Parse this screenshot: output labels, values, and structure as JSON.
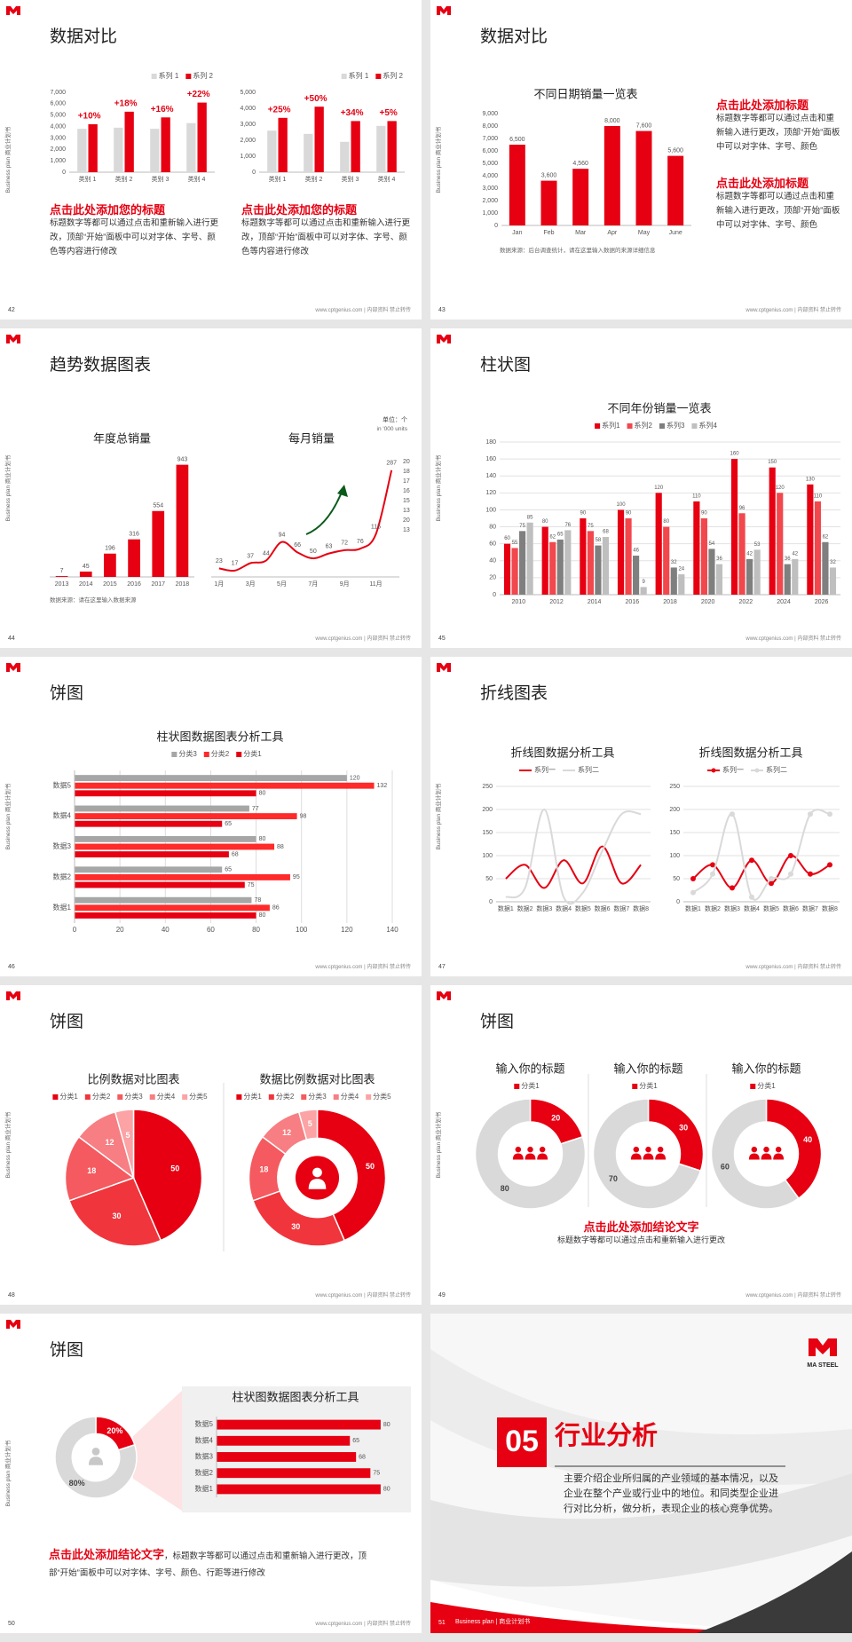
{
  "common": {
    "side_label": "Business plan 商业计划书",
    "footer": "www.cptgenius.com | 内部资料 禁止转传"
  },
  "slides": [
    {
      "number": 42,
      "title": "数据对比",
      "charts": [
        {
          "type": "bar",
          "legend": "top-right",
          "categories": [
            "类别 1",
            "类别 2",
            "类别 3",
            "类别 4"
          ],
          "series": [
            {
              "name": "系列 1",
              "color": "#d9d9d9",
              "values": [
                3800,
                3900,
                3800,
                4300
              ]
            },
            {
              "name": "系列 2",
              "color": "#e60012",
              "values": [
                4200,
                5300,
                4800,
                6100
              ]
            }
          ],
          "annotations": [
            "+10%",
            "+18%",
            "+16%",
            "+22%"
          ],
          "ylim": [
            0,
            7000
          ],
          "yticks": [
            0,
            {
              "value": 1000,
              "label": "1,000"
            },
            {
              "value": 2000,
              "label": "2,000"
            },
            {
              "value": 3000,
              "label": "3,000"
            },
            {
              "value": 4000,
              "label": "4,000"
            },
            {
              "value": 5000,
              "label": "5,000"
            },
            {
              "value": 6000,
              "label": "6,000"
            },
            {
              "value": 7000,
              "label": "7,000"
            }
          ]
        },
        {
          "type": "bar",
          "legend": "top-right",
          "categories": [
            "类别 1",
            "类别 2",
            "类别 3",
            "类别 4"
          ],
          "series": [
            {
              "name": "系列 1",
              "color": "#d9d9d9",
              "values": [
                2600,
                2400,
                1900,
                2900
              ]
            },
            {
              "name": "系列 2",
              "color": "#e60012",
              "values": [
                3400,
                4100,
                3200,
                3200
              ]
            }
          ],
          "annotations": [
            "+25%",
            "+50%",
            "+34%",
            "+5%"
          ],
          "ylim": [
            0,
            5000
          ],
          "yticks": [
            0,
            {
              "value": 1000,
              "label": "1,000"
            },
            {
              "value": 2000,
              "label": "2,000"
            },
            {
              "value": 3000,
              "label": "3,000"
            },
            {
              "value": 4000,
              "label": "4,000"
            },
            {
              "value": 5000,
              "label": "5,000"
            }
          ]
        }
      ],
      "blocks": [
        {
          "heading": "点击此处添加您的标题",
          "body": "标题数字等都可以通过点击和重新输入进行更改，顶部“开始”面板中可以对字体、字号、颜色等内容进行修改"
        },
        {
          "heading": "点击此处添加您的标题",
          "body": "标题数字等都可以通过点击和重新输入进行更改，顶部“开始”面板中可以对字体、字号、颜色等内容进行修改"
        }
      ]
    },
    {
      "number": 43,
      "title": "数据对比",
      "charts": [
        {
          "type": "bar",
          "title": "不同日期销量一览表",
          "categories": [
            "Jan",
            "Feb",
            "Mar",
            "Apr",
            "May",
            "June"
          ],
          "values": [
            6500,
            3600,
            4560,
            8000,
            7600,
            5600
          ],
          "value_labels": [
            "6,500",
            "3,600",
            "4,560",
            "8,000",
            "7,600",
            "5,600"
          ],
          "color": "#e60012",
          "ylim": [
            0,
            9000
          ],
          "yticks": [
            0,
            {
              "value": 1000,
              "label": "1,000"
            },
            {
              "value": 2000,
              "label": "2,000"
            },
            {
              "value": 3000,
              "label": "3,000"
            },
            {
              "value": 4000,
              "label": "4,000"
            },
            {
              "value": 5000,
              "label": "5,000"
            },
            {
              "value": 6000,
              "label": "6,000"
            },
            {
              "value": 7000,
              "label": "7,000"
            },
            {
              "value": 8000,
              "label": "8,000"
            },
            {
              "value": 9000,
              "label": "9,000"
            }
          ]
        }
      ],
      "source": "数据来源：后台调查统计，请在这里输入数据的来源详细信息",
      "blocks": [
        {
          "heading": "点击此处添加标题",
          "body": "标题数字等都可以通过点击和重新输入进行更改，顶部“开始”面板中可以对字体、字号、颜色"
        },
        {
          "heading": "点击此处添加标题",
          "body": "标题数字等都可以通过点击和重新输入进行更改，顶部“开始”面板中可以对字体、字号、颜色"
        }
      ]
    },
    {
      "number": 44,
      "title": "趋势数据图表",
      "unit": "单位：个",
      "unit_en": "in '000 units",
      "charts": [
        {
          "type": "bar",
          "title": "年度总销量",
          "categories": [
            "2013",
            "2014",
            "2015",
            "2016",
            "2017",
            "2018"
          ],
          "values": [
            7,
            45,
            196,
            316,
            554,
            943
          ],
          "color": "#e60012",
          "data_labels": true,
          "ylim": [
            0,
            1000
          ]
        },
        {
          "type": "line",
          "title": "每月销量",
          "categories": [
            "1月",
            null,
            "3月",
            null,
            "5月",
            null,
            "7月",
            null,
            "9月",
            null,
            "11月",
            null
          ],
          "values": [
            23,
            17,
            37,
            44,
            94,
            66,
            50,
            63,
            72,
            76,
            115,
            287
          ],
          "color": "#e60012",
          "smooth": true,
          "data_labels": true,
          "ylim": [
            0,
            320
          ],
          "right_labels": [
            20,
            18,
            17,
            16,
            15,
            13,
            20,
            13
          ]
        }
      ],
      "source": "数据来源：请在这里输入数据来源"
    },
    {
      "number": 45,
      "title": "柱状图",
      "charts": [
        {
          "type": "bar",
          "title": "不同年份销量一览表",
          "legend": "top",
          "categories": [
            "2010",
            "2012",
            "2014",
            "2016",
            "2018",
            "2020",
            "2022",
            "2024",
            "2026"
          ],
          "series": [
            {
              "name": "系列1",
              "color": "#e60012",
              "values": [
                60,
                80,
                90,
                100,
                120,
                110,
                160,
                150,
                130
              ]
            },
            {
              "name": "系列2",
              "color": "#f2474c",
              "values": [
                55,
                62,
                75,
                90,
                80,
                90,
                96,
                120,
                110
              ]
            },
            {
              "name": "系列3",
              "color": "#7f7f7f",
              "values": [
                75,
                65,
                58,
                46,
                32,
                54,
                42,
                36,
                62
              ]
            },
            {
              "name": "系列4",
              "color": "#bfbfbf",
              "values": [
                85,
                76,
                68,
                9,
                24,
                36,
                53,
                42,
                32
              ]
            }
          ],
          "data_labels": true,
          "grid": true,
          "ylim": [
            0,
            180
          ],
          "yticks": [
            0,
            20,
            40,
            60,
            80,
            100,
            120,
            140,
            160,
            180
          ]
        }
      ]
    },
    {
      "number": 46,
      "title": "饼图",
      "charts": [
        {
          "type": "hbar",
          "title": "柱状图数据图表分析工具",
          "legend": "top",
          "categories": [
            "数据1",
            "数据2",
            "数据3",
            "数据4",
            "数据5"
          ],
          "series": [
            {
              "name": "分类3",
              "color": "#a6a6a6",
              "values": [
                78,
                65,
                80,
                77,
                120
              ]
            },
            {
              "name": "分类2",
              "color": "#ff2a2a",
              "values": [
                86,
                95,
                88,
                98,
                132
              ]
            },
            {
              "name": "分类1",
              "color": "#e60012",
              "values": [
                80,
                75,
                68,
                65,
                80
              ]
            }
          ],
          "data_labels": true,
          "grid": true,
          "xlim": [
            0,
            140
          ],
          "xticks": [
            0,
            20,
            40,
            60,
            80,
            100,
            120,
            140
          ]
        }
      ]
    },
    {
      "number": 47,
      "title": "折线图表",
      "charts": [
        {
          "type": "line",
          "title": "折线图数据分析工具",
          "legend": "top",
          "categories": [
            "数据1",
            "数据2",
            "数据3",
            "数据4",
            "数据5",
            "数据6",
            "数据7",
            "数据8"
          ],
          "series": [
            {
              "name": "系列一",
              "color": "#e60012",
              "values": [
                50,
                80,
                30,
                90,
                40,
                120,
                40,
                80
              ]
            },
            {
              "name": "系列二",
              "color": "#d9d9d9",
              "values": [
                10,
                30,
                200,
                10,
                20,
                110,
                190,
                190
              ]
            }
          ],
          "smooth": true,
          "grid": true,
          "ylim": [
            0,
            250
          ],
          "yticks": [
            0,
            50,
            100,
            150,
            200,
            250
          ]
        },
        {
          "type": "line",
          "title": "折线图数据分析工具",
          "legend": "top",
          "categories": [
            "数据1",
            "数据2",
            "数据3",
            "数据4",
            "数据5",
            "数据6",
            "数据7",
            "数据8"
          ],
          "series": [
            {
              "name": "系列一",
              "color": "#e60012",
              "values": [
                50,
                80,
                30,
                90,
                40,
                100,
                60,
                80
              ]
            },
            {
              "name": "系列二",
              "color": "#d9d9d9",
              "values": [
                20,
                60,
                190,
                10,
                50,
                60,
                190,
                190
              ]
            }
          ],
          "smooth": true,
          "markers": true,
          "grid": true,
          "ylim": [
            0,
            250
          ],
          "yticks": [
            0,
            50,
            100,
            150,
            200,
            250
          ]
        }
      ]
    },
    {
      "number": 48,
      "title": "饼图",
      "charts": [
        {
          "type": "pie",
          "title": "比例数据对比图表",
          "legend": "top",
          "categories": [
            "分类1",
            "分类2",
            "分类3",
            "分类4",
            "分类5"
          ],
          "values": [
            50,
            30,
            18,
            12,
            5
          ],
          "colors": [
            "#e60012",
            "#f0363c",
            "#f45a5f",
            "#f77e82",
            "#fba3a5"
          ]
        },
        {
          "type": "donut",
          "title": "数据比例数据对比图表",
          "legend": "top",
          "categories": [
            "分类1",
            "分类2",
            "分类3",
            "分类4",
            "分类5"
          ],
          "values": [
            50,
            30,
            18,
            12,
            5
          ],
          "colors": [
            "#e60012",
            "#f0363c",
            "#f45a5f",
            "#f77e82",
            "#fba3a5"
          ]
        }
      ]
    },
    {
      "number": 49,
      "title": "饼图",
      "charts": [
        {
          "type": "donut",
          "title": "输入你的标题",
          "legend": "top",
          "categories": [
            "分类1",
            null
          ],
          "values": [
            20,
            80
          ],
          "colors": [
            "#e60012",
            "#d9d9d9"
          ]
        },
        {
          "type": "donut",
          "title": "输入你的标题",
          "legend": "top",
          "categories": [
            "分类1",
            null
          ],
          "values": [
            30,
            70
          ],
          "colors": [
            "#e60012",
            "#d9d9d9"
          ]
        },
        {
          "type": "donut",
          "title": "输入你的标题",
          "legend": "top",
          "categories": [
            "分类1",
            null
          ],
          "values": [
            40,
            60
          ],
          "colors": [
            "#e60012",
            "#d9d9d9"
          ]
        }
      ],
      "conclusion": {
        "heading": "点击此处添加结论文字",
        "body": "标题数字等都可以通过点击和重新输入进行更改"
      }
    },
    {
      "number": 50,
      "title": "饼图",
      "charts": [
        {
          "type": "donut",
          "values": [
            20,
            80
          ],
          "value_labels": [
            "20%",
            "80%"
          ],
          "colors": [
            "#e60012",
            "#d9d9d9"
          ]
        },
        {
          "type": "hbar",
          "title": "柱状图数据图表分析工具",
          "categories": [
            "数据1",
            "数据2",
            "数据3",
            "数据4",
            "数据5"
          ],
          "values": [
            80,
            75,
            68,
            65,
            80
          ],
          "color": "#e60012",
          "data_labels": true,
          "xlim": [
            0,
            90
          ]
        }
      ],
      "conclusion": {
        "heading": "点击此处添加结论文字",
        "body": "，标题数字等都可以通过点击和重新输入进行更改，顶部“开始”面板中可以对字体、字号、颜色、行距等进行修改"
      }
    },
    {
      "number": 51,
      "section": "05",
      "title": "行业分析",
      "logo": "MA STEEL",
      "footer": "Business plan | 商业计划书",
      "body": "主要介绍企业所归属的产业领域的基本情况，以及企业在整个产业或行业中的地位。和同类型企业进行对比分析，做分析，表现企业的核心竞争优势。"
    }
  ]
}
